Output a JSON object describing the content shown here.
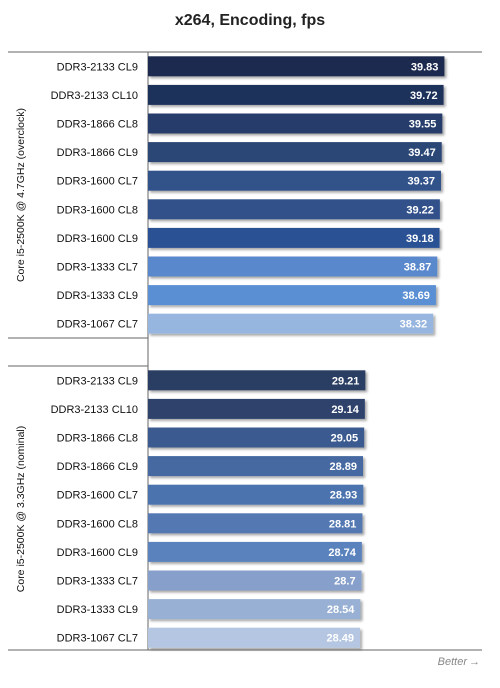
{
  "chart_data": {
    "type": "bar",
    "orientation": "horizontal",
    "title": "x264, Encoding, fps",
    "groups": [
      {
        "name": "Core i5-2500K @ 4.7GHz (overclock)",
        "categories": [
          "DDR3-2133 CL9",
          "DDR3-2133 CL10",
          "DDR3-1866 CL8",
          "DDR3-1866 CL9",
          "DDR3-1600 CL7",
          "DDR3-1600 CL8",
          "DDR3-1600 CL9",
          "DDR3-1333 CL7",
          "DDR3-1333 CL9",
          "DDR3-1067 CL7"
        ],
        "values": [
          39.83,
          39.72,
          39.55,
          39.47,
          39.37,
          39.22,
          39.18,
          38.87,
          38.69,
          38.32
        ],
        "value_labels": [
          "39.83",
          "39.72",
          "39.55",
          "39.47",
          "39.37",
          "39.22",
          "39.18",
          "38.87",
          "38.69",
          "38.32"
        ],
        "colors": [
          "#1c2b4f",
          "#1f305a",
          "#253d6c",
          "#2a4676",
          "#31528a",
          "#30518b",
          "#2c5194",
          "#5a88cc",
          "#5a8fd4",
          "#96b5df"
        ]
      },
      {
        "name": "Core i5-2500K @ 3.3GHz (nominal)",
        "categories": [
          "DDR3-2133 CL9",
          "DDR3-2133 CL10",
          "DDR3-1866 CL8",
          "DDR3-1866 CL9",
          "DDR3-1600 CL7",
          "DDR3-1600 CL8",
          "DDR3-1600 CL9",
          "DDR3-1333 CL7",
          "DDR3-1333 CL9",
          "DDR3-1067 CL7"
        ],
        "values": [
          29.21,
          29.14,
          29.05,
          28.89,
          28.93,
          28.81,
          28.74,
          28.7,
          28.54,
          28.49
        ],
        "value_labels": [
          "29.21",
          "29.14",
          "29.05",
          "28.89",
          "28.93",
          "28.81",
          "28.74",
          "28.7",
          "28.54",
          "28.49"
        ],
        "colors": [
          "#2a3c63",
          "#2d426c",
          "#3b5a8f",
          "#4569a0",
          "#4b73ae",
          "#5278b2",
          "#5a82bd",
          "#879fcb",
          "#98b0d4",
          "#b4c6e2"
        ]
      }
    ],
    "xlim": [
      0,
      43
    ],
    "grid": false,
    "legend": "none",
    "footer": "Better"
  }
}
